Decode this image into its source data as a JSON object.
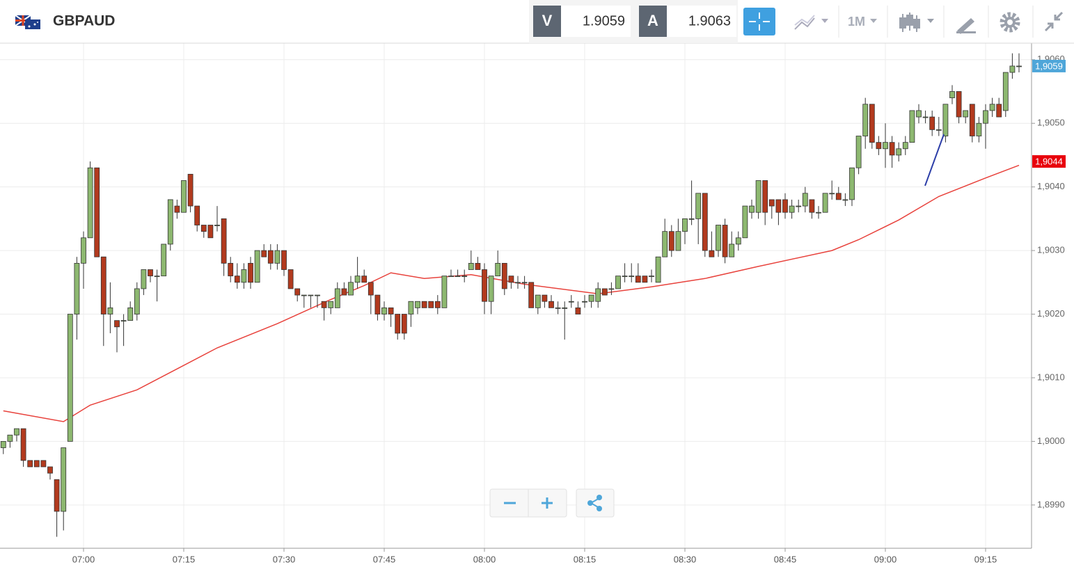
{
  "header": {
    "symbol": "GBPAUD",
    "bid_label": "V",
    "bid": "1.9059",
    "ask_label": "A",
    "ask": "1.9063",
    "interval": "1M"
  },
  "chart_data": {
    "type": "candlestick",
    "categories": [
      "06:48",
      "06:49",
      "06:50",
      "06:51",
      "06:52",
      "06:53",
      "06:54",
      "06:55",
      "06:56",
      "06:57",
      "06:58",
      "06:59",
      "07:00",
      "07:01",
      "07:02",
      "07:03",
      "07:04",
      "07:05",
      "07:06",
      "07:07",
      "07:08",
      "07:09",
      "07:10",
      "07:11",
      "07:12",
      "07:13",
      "07:14",
      "07:15",
      "07:16",
      "07:17",
      "07:18",
      "07:19",
      "07:20",
      "07:21",
      "07:22",
      "07:23",
      "07:24",
      "07:25",
      "07:26",
      "07:27",
      "07:28",
      "07:29",
      "07:30",
      "07:31",
      "07:32",
      "07:33",
      "07:34",
      "07:35",
      "07:36",
      "07:37",
      "07:38",
      "07:39",
      "07:40",
      "07:41",
      "07:42",
      "07:43",
      "07:44",
      "07:45",
      "07:46",
      "07:47",
      "07:48",
      "07:49",
      "07:50",
      "07:51",
      "07:52",
      "07:53",
      "07:54",
      "07:55",
      "07:56",
      "07:57",
      "07:58",
      "07:59",
      "08:00",
      "08:01",
      "08:02",
      "08:03",
      "08:04",
      "08:05",
      "08:06",
      "08:07",
      "08:08",
      "08:09",
      "08:10",
      "08:11",
      "08:12",
      "08:13",
      "08:14",
      "08:15",
      "08:16",
      "08:17",
      "08:18",
      "08:19",
      "08:20",
      "08:21",
      "08:22",
      "08:23",
      "08:24",
      "08:25",
      "08:26",
      "08:27",
      "08:28",
      "08:29",
      "08:30",
      "08:31",
      "08:32",
      "08:33",
      "08:34",
      "08:35",
      "08:36",
      "08:37",
      "08:38",
      "08:39",
      "08:40",
      "08:41",
      "08:42",
      "08:43",
      "08:44",
      "08:45",
      "08:46",
      "08:47",
      "08:48",
      "08:49",
      "08:50",
      "08:51",
      "08:52",
      "08:53",
      "08:54",
      "08:55",
      "08:56",
      "08:57",
      "08:58",
      "08:59",
      "09:00",
      "09:01",
      "09:02",
      "09:03",
      "09:04",
      "09:05",
      "09:06",
      "09:07",
      "09:08",
      "09:09",
      "09:10",
      "09:11",
      "09:12",
      "09:13",
      "09:14",
      "09:15",
      "09:16",
      "09:17",
      "09:18",
      "09:19",
      "09:20"
    ],
    "open": [
      1.8999,
      1.9,
      1.9001,
      1.9002,
      1.8997,
      1.8997,
      1.8997,
      1.8996,
      1.8994,
      1.8989,
      1.9,
      1.902,
      1.9028,
      1.9032,
      1.9043,
      1.9029,
      1.902,
      1.9019,
      1.9019,
      1.9019,
      1.902,
      1.9024,
      1.9027,
      1.9026,
      1.9026,
      1.9031,
      1.9037,
      1.9036,
      1.9042,
      1.9037,
      1.9034,
      1.9034,
      1.9034,
      1.9035,
      1.9028,
      1.9026,
      1.9025,
      1.9028,
      1.9025,
      1.903,
      1.903,
      1.9028,
      1.903,
      1.9027,
      1.9024,
      1.9023,
      1.9023,
      1.9023,
      1.9022,
      1.9021,
      1.9021,
      1.9024,
      1.9023,
      1.9025,
      1.9026,
      1.9025,
      1.9023,
      1.902,
      1.9021,
      1.902,
      1.902,
      1.902,
      1.9021,
      1.9022,
      1.9022,
      1.9022,
      1.9021,
      1.9026,
      1.9026,
      1.9026,
      1.9027,
      1.9028,
      1.9027,
      1.9022,
      1.9026,
      1.9028,
      1.9026,
      1.9025,
      1.9025,
      1.9025,
      1.9021,
      1.9023,
      1.9022,
      1.9021,
      1.9021,
      1.9022,
      1.9021,
      1.9022,
      1.9022,
      1.9022,
      1.9024,
      1.9024,
      1.9024,
      1.9026,
      1.9026,
      1.9026,
      1.9026,
      1.9026,
      1.9025,
      1.9029,
      1.9033,
      1.903,
      1.9033,
      1.9035,
      1.9035,
      1.9039,
      1.903,
      1.903,
      1.9034,
      1.9029,
      1.9031,
      1.9032,
      1.9036,
      1.9036,
      1.9041,
      1.9038,
      1.9038,
      1.9038,
      1.9036,
      1.9037,
      1.9037,
      1.9038,
      1.9036,
      1.9036,
      1.9039,
      1.9039,
      1.9038,
      1.9038,
      1.9043,
      1.9048,
      1.9053,
      1.9047,
      1.9046,
      1.9047,
      1.9045,
      1.9046,
      1.9047,
      1.9051,
      1.9051,
      1.9051,
      1.9049,
      1.9048,
      1.9054,
      1.9055,
      1.9051,
      1.9053,
      1.9048,
      1.905,
      1.9052,
      1.9053,
      1.9052,
      1.9058,
      1.9059
    ],
    "high": [
      1.9,
      1.9001,
      1.9002,
      1.9002,
      1.8997,
      1.8997,
      1.8997,
      1.8996,
      1.8994,
      1.8999,
      1.902,
      1.9029,
      1.9033,
      1.9044,
      1.9043,
      1.9029,
      1.9025,
      1.9019,
      1.902,
      1.9022,
      1.9025,
      1.9027,
      1.9027,
      1.9027,
      1.9031,
      1.9038,
      1.9038,
      1.9041,
      1.9042,
      1.9037,
      1.9034,
      1.9034,
      1.9037,
      1.9035,
      1.9029,
      1.9028,
      1.9028,
      1.9029,
      1.903,
      1.9031,
      1.9031,
      1.9031,
      1.903,
      1.9027,
      1.9024,
      1.9023,
      1.9023,
      1.9023,
      1.9022,
      1.9022,
      1.9025,
      1.9025,
      1.9026,
      1.9029,
      1.9027,
      1.9025,
      1.9023,
      1.9022,
      1.9021,
      1.902,
      1.902,
      1.9022,
      1.9022,
      1.9022,
      1.9022,
      1.9023,
      1.9026,
      1.9027,
      1.9027,
      1.9027,
      1.903,
      1.9029,
      1.9028,
      1.9026,
      1.903,
      1.9028,
      1.9026,
      1.9026,
      1.9026,
      1.9025,
      1.9023,
      1.9023,
      1.9023,
      1.9022,
      1.9022,
      1.9023,
      1.9022,
      1.9023,
      1.9023,
      1.9025,
      1.9024,
      1.9025,
      1.9026,
      1.9028,
      1.9028,
      1.9028,
      1.9026,
      1.9027,
      1.9029,
      1.9035,
      1.9034,
      1.9035,
      1.9035,
      1.9041,
      1.9039,
      1.9039,
      1.9033,
      1.9034,
      1.9035,
      1.9033,
      1.9033,
      1.9037,
      1.9038,
      1.9041,
      1.9041,
      1.9038,
      1.9038,
      1.9039,
      1.9038,
      1.9038,
      1.904,
      1.9038,
      1.9037,
      1.9039,
      1.9041,
      1.904,
      1.9039,
      1.9043,
      1.9048,
      1.9054,
      1.9053,
      1.9048,
      1.905,
      1.9048,
      1.9047,
      1.9048,
      1.9052,
      1.9053,
      1.9052,
      1.9052,
      1.9051,
      1.9053,
      1.9056,
      1.9055,
      1.9052,
      1.9053,
      1.9051,
      1.9053,
      1.9054,
      1.9054,
      1.9058,
      1.9061,
      1.9061
    ],
    "low": [
      1.8998,
      1.8999,
      1.9,
      1.8996,
      1.8996,
      1.8996,
      1.8996,
      1.8994,
      1.8985,
      1.8986,
      1.9,
      1.9016,
      1.9024,
      1.9032,
      1.9029,
      1.9015,
      1.9017,
      1.9014,
      1.9015,
      1.9019,
      1.9019,
      1.9023,
      1.9025,
      1.9022,
      1.9026,
      1.903,
      1.9035,
      1.9036,
      1.9036,
      1.9033,
      1.9032,
      1.9032,
      1.9033,
      1.9026,
      1.9025,
      1.9024,
      1.9024,
      1.9024,
      1.9025,
      1.9029,
      1.9027,
      1.9027,
      1.9026,
      1.9024,
      1.9022,
      1.9021,
      1.9021,
      1.9021,
      1.9019,
      1.902,
      1.9021,
      1.9023,
      1.9023,
      1.9024,
      1.9025,
      1.902,
      1.9019,
      1.9019,
      1.9018,
      1.9016,
      1.9016,
      1.9018,
      1.902,
      1.9021,
      1.9021,
      1.902,
      1.9021,
      1.9026,
      1.9026,
      1.9025,
      1.9027,
      1.9027,
      1.902,
      1.902,
      1.9026,
      1.9023,
      1.9024,
      1.9024,
      1.9024,
      1.9021,
      1.902,
      1.9021,
      1.9021,
      1.902,
      1.9016,
      1.9021,
      1.902,
      1.9021,
      1.9021,
      1.9021,
      1.9023,
      1.9023,
      1.9024,
      1.9025,
      1.9025,
      1.9025,
      1.9025,
      1.9025,
      1.9025,
      1.9029,
      1.9029,
      1.903,
      1.9031,
      1.9034,
      1.9031,
      1.9029,
      1.9029,
      1.9029,
      1.9028,
      1.9029,
      1.903,
      1.9032,
      1.9035,
      1.9035,
      1.9034,
      1.9035,
      1.9034,
      1.9035,
      1.9035,
      1.9036,
      1.9036,
      1.9035,
      1.9035,
      1.9036,
      1.9038,
      1.9038,
      1.9037,
      1.9037,
      1.9042,
      1.9046,
      1.9046,
      1.9045,
      1.9043,
      1.9043,
      1.9044,
      1.9045,
      1.9047,
      1.905,
      1.905,
      1.9048,
      1.9048,
      1.9047,
      1.9053,
      1.905,
      1.905,
      1.9047,
      1.9047,
      1.9046,
      1.9051,
      1.9051,
      1.9051,
      1.9057,
      1.9058
    ],
    "close": [
      1.9,
      1.9001,
      1.9002,
      1.8997,
      1.8996,
      1.8996,
      1.8996,
      1.8995,
      1.8989,
      1.8999,
      1.902,
      1.9028,
      1.9032,
      1.9043,
      1.9029,
      1.902,
      1.9021,
      1.9018,
      1.9019,
      1.9021,
      1.9024,
      1.9027,
      1.9026,
      1.9026,
      1.9031,
      1.9038,
      1.9036,
      1.9041,
      1.9037,
      1.9034,
      1.9033,
      1.9032,
      1.9034,
      1.9028,
      1.9026,
      1.9025,
      1.9027,
      1.9025,
      1.903,
      1.9029,
      1.9028,
      1.903,
      1.9027,
      1.9024,
      1.9023,
      1.9023,
      1.9023,
      1.9023,
      1.9021,
      1.9022,
      1.9024,
      1.9023,
      1.9025,
      1.9026,
      1.9025,
      1.9023,
      1.902,
      1.9021,
      1.902,
      1.9017,
      1.9017,
      1.9022,
      1.9022,
      1.9021,
      1.9021,
      1.9021,
      1.9026,
      1.9026,
      1.9026,
      1.9026,
      1.9028,
      1.9027,
      1.9022,
      1.9026,
      1.9028,
      1.9024,
      1.9025,
      1.9025,
      1.9025,
      1.9021,
      1.9023,
      1.9022,
      1.9021,
      1.9021,
      1.9021,
      1.9022,
      1.902,
      1.9022,
      1.9023,
      1.9024,
      1.9023,
      1.9024,
      1.9026,
      1.9026,
      1.9026,
      1.9025,
      1.9025,
      1.9026,
      1.9029,
      1.9033,
      1.903,
      1.9033,
      1.9035,
      1.9035,
      1.9039,
      1.903,
      1.9029,
      1.9034,
      1.9029,
      1.9031,
      1.9032,
      1.9037,
      1.9037,
      1.9041,
      1.9036,
      1.9037,
      1.9036,
      1.9036,
      1.9037,
      1.9037,
      1.9039,
      1.9036,
      1.9036,
      1.9039,
      1.9039,
      1.9038,
      1.9038,
      1.9043,
      1.9048,
      1.9053,
      1.9047,
      1.9046,
      1.9047,
      1.9045,
      1.9046,
      1.9047,
      1.9052,
      1.9052,
      1.9051,
      1.9049,
      1.9049,
      1.9053,
      1.9055,
      1.9051,
      1.9052,
      1.9048,
      1.905,
      1.9052,
      1.9053,
      1.9051,
      1.9058,
      1.9059,
      1.9059
    ],
    "up_color": "#8db870",
    "down_color": "#b23a1e",
    "moving_average": {
      "color": "#e8423c",
      "x": [
        "06:48",
        "06:57",
        "07:01",
        "07:08",
        "07:14",
        "07:20",
        "07:29",
        "07:37",
        "07:42",
        "07:46",
        "07:51",
        "07:58",
        "08:06",
        "08:17",
        "08:25",
        "08:33",
        "08:41",
        "08:52",
        "08:56",
        "09:02",
        "09:08",
        "09:15",
        "09:20"
      ],
      "values": [
        1.90048,
        1.90031,
        1.90057,
        1.90081,
        1.90114,
        1.90147,
        1.90185,
        1.90223,
        1.90245,
        1.90265,
        1.90256,
        1.90262,
        1.90247,
        1.90232,
        1.90243,
        1.90256,
        1.90275,
        1.903,
        1.90317,
        1.90348,
        1.90385,
        1.90414,
        1.90434
      ]
    },
    "price_labels": [
      {
        "value": 1.9059,
        "label": "1,9059",
        "color": "#4ea6d9"
      },
      {
        "value": 1.9044,
        "label": "1,9044",
        "color": "#e8000b"
      }
    ],
    "xticks": [
      "07:00",
      "07:15",
      "07:30",
      "07:45",
      "08:00",
      "08:15",
      "08:30",
      "08:45",
      "09:00",
      "09:15"
    ],
    "ylim": [
      1.89832,
      1.90626
    ],
    "yticks": [
      {
        "value": 1.899,
        "label": "1,8990"
      },
      {
        "value": 1.9,
        "label": "1,9000"
      },
      {
        "value": 1.901,
        "label": "1,9010"
      },
      {
        "value": 1.902,
        "label": "1,9020"
      },
      {
        "value": 1.903,
        "label": "1,9030"
      },
      {
        "value": 1.904,
        "label": "1,9040"
      },
      {
        "value": 1.905,
        "label": "1,9050"
      },
      {
        "value": 1.906,
        "label": "1,9060"
      }
    ],
    "grid": true
  }
}
